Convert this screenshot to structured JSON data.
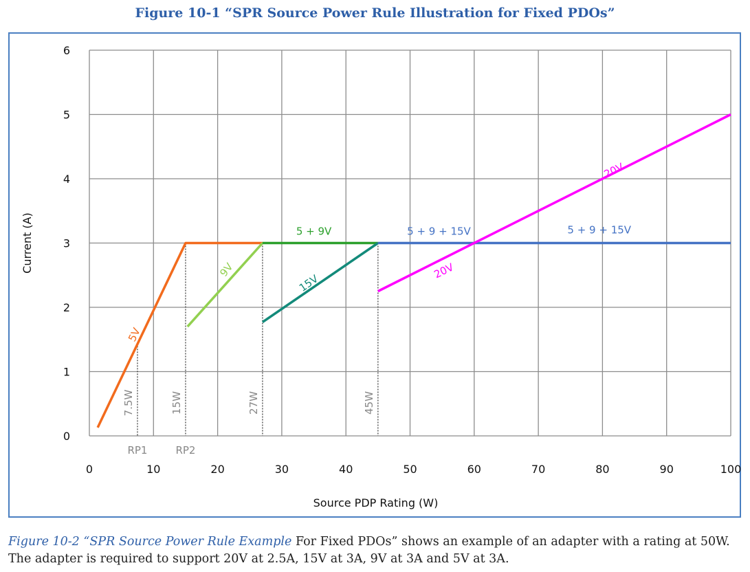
{
  "figure_title": "Figure 10-1 “SPR Source Power Rule Illustration for Fixed PDOs”",
  "caption": {
    "emphasis": "Figure 10-2 “SPR Source Power Rule Example",
    "text": " For Fixed PDOs” shows an example of an adapter with a rating at 50W.  The adapter is required to support 20V at 2.5A, 15V at 3A, 9V at 3A and 5V at 3A."
  },
  "chart_data": {
    "type": "line",
    "xlabel": "Source PDP Rating (W)",
    "ylabel": "Current (A)",
    "xlim": [
      0,
      100
    ],
    "ylim": [
      0,
      6
    ],
    "x_ticks": [
      0,
      10,
      20,
      30,
      40,
      50,
      60,
      70,
      80,
      90,
      100
    ],
    "y_ticks": [
      0,
      1,
      2,
      3,
      4,
      5,
      6
    ],
    "grid": true,
    "series": [
      {
        "name": "5V",
        "color": "#f26b1d",
        "points": [
          [
            1.3,
            0.13
          ],
          [
            15,
            3
          ],
          [
            27,
            3
          ]
        ]
      },
      {
        "name": "9V",
        "color": "#92d050",
        "points": [
          [
            15.3,
            1.7
          ],
          [
            27,
            3
          ]
        ]
      },
      {
        "name": "5 + 9V",
        "color": "#2ca02c",
        "points": [
          [
            27,
            3
          ],
          [
            45,
            3
          ]
        ]
      },
      {
        "name": "15V",
        "color": "#138a7a",
        "points": [
          [
            27,
            1.77
          ],
          [
            45,
            3
          ]
        ]
      },
      {
        "name": "5 + 9 + 15V",
        "color": "#4472c4",
        "points": [
          [
            45,
            3
          ],
          [
            100,
            3
          ]
        ]
      },
      {
        "name": "20V",
        "color": "#ff00ff",
        "points": [
          [
            45,
            2.25
          ],
          [
            100,
            5
          ]
        ]
      }
    ],
    "line_labels": [
      {
        "text": "5V",
        "x": 7.5,
        "y": 1.55,
        "angle": -64,
        "color": "#f26b1d"
      },
      {
        "text": "9V",
        "x": 21.8,
        "y": 2.55,
        "angle": -52,
        "color": "#92d050"
      },
      {
        "text": "5 + 9V",
        "x": 35,
        "y": 3.13,
        "angle": 0,
        "color": "#2ca02c"
      },
      {
        "text": "15V",
        "x": 34.5,
        "y": 2.33,
        "angle": -35,
        "color": "#138a7a"
      },
      {
        "text": "5 + 9 + 15V",
        "x": 54.5,
        "y": 3.13,
        "angle": 0,
        "color": "#4472c4"
      },
      {
        "text": "5 + 9 + 15V",
        "x": 79.5,
        "y": 3.15,
        "angle": 0,
        "color": "#4472c4"
      },
      {
        "text": "20V",
        "x": 82,
        "y": 4.08,
        "angle": -26,
        "color": "#ff00ff"
      },
      {
        "text": "20V",
        "x": 55.5,
        "y": 2.52,
        "angle": -26,
        "color": "#ff00ff"
      }
    ],
    "vertical_markers": [
      {
        "x": 7.5,
        "top": 1.44,
        "label": "7.5W"
      },
      {
        "x": 15,
        "top": 3,
        "label": "15W"
      },
      {
        "x": 27,
        "top": 3,
        "label": "27W"
      },
      {
        "x": 45,
        "top": 3,
        "label": "45W"
      }
    ],
    "x_annotations": [
      {
        "text": "RP1",
        "x": 7.5
      },
      {
        "text": "RP2",
        "x": 15
      }
    ]
  }
}
